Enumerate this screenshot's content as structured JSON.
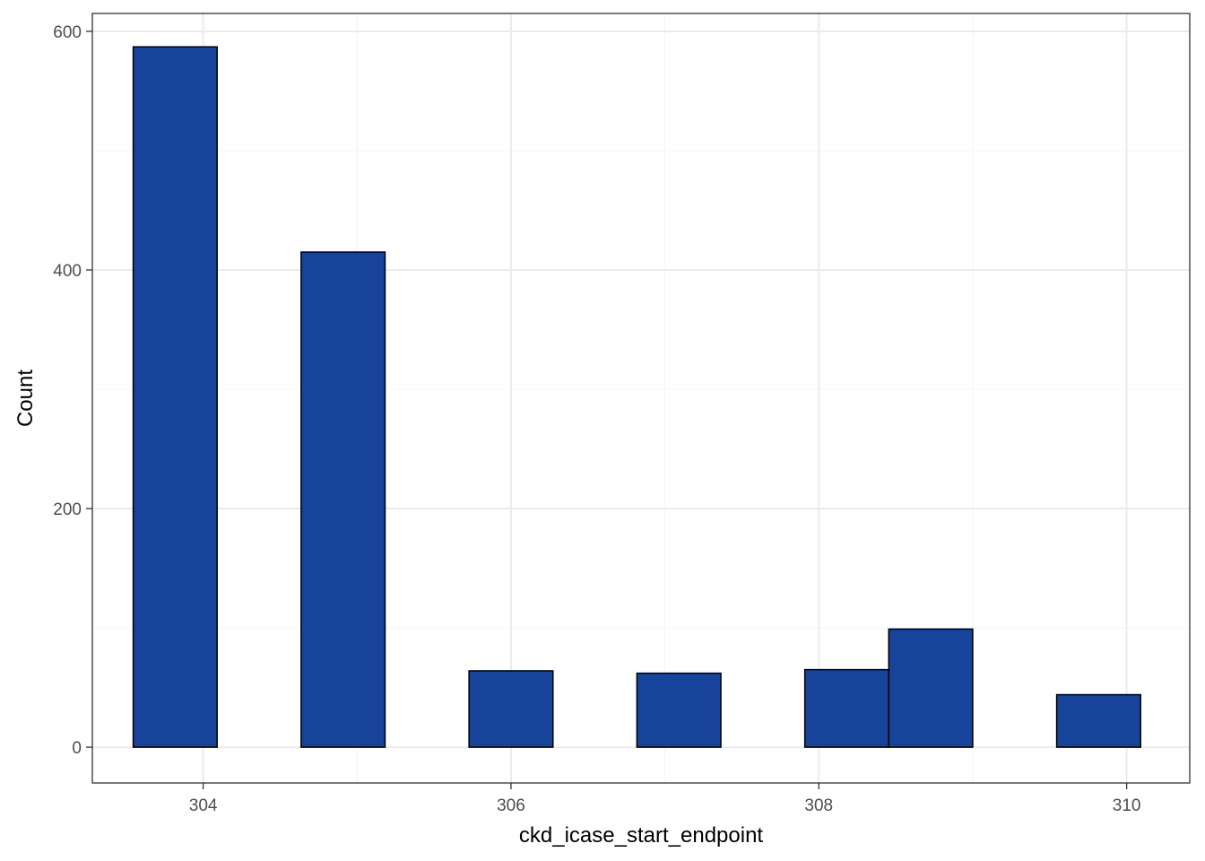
{
  "chart_data": {
    "type": "bar",
    "title": "",
    "xlabel": "ckd_icase_start_endpoint",
    "ylabel": "Count",
    "xlim": [
      303.28,
      310.41
    ],
    "ylim": [
      -30,
      615
    ],
    "x_ticks": [
      304,
      306,
      308,
      310
    ],
    "y_ticks": [
      0,
      200,
      400,
      600
    ],
    "x_minor_ticks": [
      305,
      307,
      309
    ],
    "y_minor_ticks": [
      100,
      300,
      500
    ],
    "grid": true,
    "bin_width": 0.5455,
    "bins": [
      {
        "start": 303.5455,
        "end": 304.0909,
        "count": 587
      },
      {
        "start": 304.0909,
        "end": 304.6364,
        "count": 0
      },
      {
        "start": 304.6364,
        "end": 305.1818,
        "count": 415
      },
      {
        "start": 305.1818,
        "end": 305.7273,
        "count": 0
      },
      {
        "start": 305.7273,
        "end": 306.2727,
        "count": 64
      },
      {
        "start": 306.2727,
        "end": 306.8182,
        "count": 0
      },
      {
        "start": 306.8182,
        "end": 307.3636,
        "count": 62
      },
      {
        "start": 307.3636,
        "end": 307.9091,
        "count": 0
      },
      {
        "start": 307.9091,
        "end": 308.4545,
        "count": 65
      },
      {
        "start": 308.4545,
        "end": 309.0,
        "count": 99
      },
      {
        "start": 309.0,
        "end": 309.5455,
        "count": 0
      },
      {
        "start": 309.5455,
        "end": 310.0909,
        "count": 44
      }
    ],
    "colors": {
      "fill": "#17439A",
      "outline": "#000000",
      "grid_major": "#EBEBEB",
      "grid_minor": "#F4F4F4",
      "panel_border": "#333333",
      "tick_text": "#4D4D4D"
    }
  }
}
